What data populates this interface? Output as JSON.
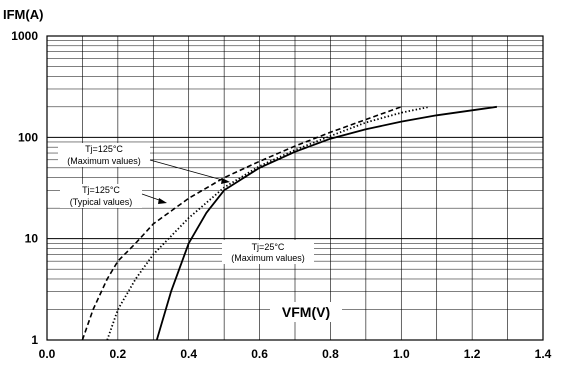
{
  "chart_data": {
    "type": "line",
    "y_axis_title": "IFM(A)",
    "x_axis_title": "VFM(V)",
    "x_ticks": [
      "0.0",
      "0.2",
      "0.4",
      "0.6",
      "0.8",
      "1.0",
      "1.2",
      "1.4"
    ],
    "y_ticks": [
      "1",
      "10",
      "100",
      "1000"
    ],
    "xlim": [
      0,
      1.4
    ],
    "ylim": [
      1,
      1000
    ],
    "y_scale": "log",
    "grid": true,
    "annotations": [
      {
        "line1": "Tj=125°C",
        "line2": "(Maximum values)"
      },
      {
        "line1": "Tj=125°C",
        "line2": "(Typical values)"
      },
      {
        "line1": "Tj=25°C",
        "line2": "(Maximum values)"
      }
    ],
    "series": [
      {
        "style": "dashed",
        "points": [
          [
            0.1,
            1
          ],
          [
            0.13,
            2
          ],
          [
            0.17,
            4
          ],
          [
            0.2,
            6
          ],
          [
            0.25,
            9
          ],
          [
            0.3,
            14
          ],
          [
            0.4,
            25
          ],
          [
            0.5,
            40
          ],
          [
            0.6,
            58
          ],
          [
            0.7,
            82
          ],
          [
            0.8,
            112
          ],
          [
            0.9,
            150
          ],
          [
            1.0,
            200
          ]
        ]
      },
      {
        "style": "dotted",
        "points": [
          [
            0.17,
            1
          ],
          [
            0.2,
            2
          ],
          [
            0.25,
            4
          ],
          [
            0.3,
            7
          ],
          [
            0.4,
            16
          ],
          [
            0.5,
            32
          ],
          [
            0.6,
            52
          ],
          [
            0.7,
            75
          ],
          [
            0.8,
            103
          ],
          [
            0.9,
            140
          ],
          [
            1.0,
            175
          ],
          [
            1.08,
            200
          ]
        ]
      },
      {
        "style": "solid",
        "points": [
          [
            0.31,
            1
          ],
          [
            0.35,
            3
          ],
          [
            0.4,
            9
          ],
          [
            0.45,
            18
          ],
          [
            0.5,
            30
          ],
          [
            0.6,
            50
          ],
          [
            0.7,
            72
          ],
          [
            0.8,
            97
          ],
          [
            0.9,
            120
          ],
          [
            1.0,
            143
          ],
          [
            1.1,
            165
          ],
          [
            1.2,
            185
          ],
          [
            1.27,
            200
          ]
        ]
      }
    ]
  }
}
